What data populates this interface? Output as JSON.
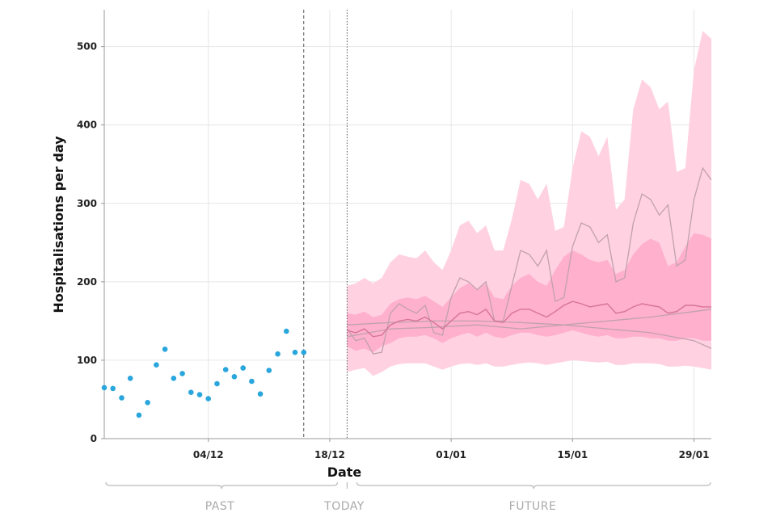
{
  "chart_data": {
    "type": "scatter",
    "xlabel": "Date",
    "ylabel": "Hospitalisations per day",
    "ylim": [
      0,
      520
    ],
    "yticks": [
      0,
      100,
      200,
      300,
      400,
      500
    ],
    "xticks": [
      {
        "date": "2020-12-04",
        "label": "04/12"
      },
      {
        "date": "2020-12-18",
        "label": "18/12"
      },
      {
        "date": "2021-01-01",
        "label": "01/01"
      },
      {
        "date": "2021-01-15",
        "label": "15/01"
      },
      {
        "date": "2021-01-29",
        "label": "29/01"
      }
    ],
    "xlim": [
      "2020-11-22",
      "2021-01-31"
    ],
    "grid": true,
    "colors": {
      "observed": "#29a6dc",
      "band_outer": "#ffd1e1",
      "band_inner": "#ffb0cc",
      "projection_line": "#d57595",
      "trajectory": "#c1a1ad",
      "reference_line": "#555555"
    },
    "markers": [
      {
        "date": "2020-12-15",
        "style": "dashed"
      },
      {
        "date": "2020-12-20",
        "style": "dotted"
      }
    ],
    "periods": {
      "past": "PAST",
      "today": "TODAY",
      "future": "FUTURE"
    },
    "observed": {
      "dates": [
        "2020-11-22",
        "2020-11-23",
        "2020-11-24",
        "2020-11-25",
        "2020-11-26",
        "2020-11-27",
        "2020-11-28",
        "2020-11-29",
        "2020-11-30",
        "2020-12-01",
        "2020-12-02",
        "2020-12-03",
        "2020-12-04",
        "2020-12-05",
        "2020-12-06",
        "2020-12-07",
        "2020-12-08",
        "2020-12-09",
        "2020-12-10",
        "2020-12-11",
        "2020-12-12",
        "2020-12-13",
        "2020-12-14",
        "2020-12-15"
      ],
      "values": [
        65,
        64,
        52,
        77,
        30,
        46,
        94,
        114,
        77,
        83,
        59,
        56,
        51,
        70,
        88,
        79,
        90,
        73,
        57,
        87,
        108,
        137,
        110,
        110
      ]
    },
    "projection": {
      "dates": [
        "2020-12-20",
        "2020-12-21",
        "2020-12-22",
        "2020-12-23",
        "2020-12-24",
        "2020-12-25",
        "2020-12-26",
        "2020-12-27",
        "2020-12-28",
        "2020-12-29",
        "2020-12-30",
        "2020-12-31",
        "2021-01-01",
        "2021-01-02",
        "2021-01-03",
        "2021-01-04",
        "2021-01-05",
        "2021-01-06",
        "2021-01-07",
        "2021-01-08",
        "2021-01-09",
        "2021-01-10",
        "2021-01-11",
        "2021-01-12",
        "2021-01-13",
        "2021-01-14",
        "2021-01-15",
        "2021-01-16",
        "2021-01-17",
        "2021-01-18",
        "2021-01-19",
        "2021-01-20",
        "2021-01-21",
        "2021-01-22",
        "2021-01-23",
        "2021-01-24",
        "2021-01-25",
        "2021-01-26",
        "2021-01-27",
        "2021-01-28",
        "2021-01-29",
        "2021-01-30",
        "2021-01-31"
      ],
      "median": [
        138,
        135,
        140,
        130,
        132,
        145,
        150,
        152,
        150,
        155,
        148,
        140,
        150,
        160,
        162,
        158,
        165,
        150,
        148,
        160,
        165,
        165,
        160,
        155,
        162,
        170,
        175,
        172,
        168,
        170,
        172,
        160,
        162,
        168,
        172,
        170,
        168,
        160,
        162,
        170,
        170,
        168,
        168
      ],
      "inner_lower": [
        118,
        112,
        115,
        110,
        118,
        122,
        128,
        130,
        130,
        132,
        128,
        122,
        128,
        132,
        135,
        130,
        135,
        130,
        128,
        132,
        135,
        135,
        132,
        130,
        132,
        135,
        138,
        135,
        132,
        130,
        132,
        128,
        128,
        130,
        130,
        128,
        128,
        125,
        125,
        128,
        128,
        125,
        125
      ],
      "inner_upper": [
        160,
        158,
        162,
        155,
        158,
        172,
        178,
        180,
        178,
        182,
        175,
        168,
        180,
        192,
        198,
        190,
        198,
        180,
        178,
        195,
        205,
        210,
        200,
        195,
        215,
        232,
        240,
        235,
        228,
        225,
        228,
        210,
        215,
        235,
        248,
        255,
        250,
        220,
        225,
        245,
        262,
        260,
        255
      ],
      "outer_lower": [
        85,
        88,
        90,
        80,
        85,
        92,
        95,
        96,
        96,
        96,
        92,
        88,
        92,
        95,
        96,
        94,
        96,
        92,
        92,
        94,
        96,
        97,
        96,
        94,
        96,
        98,
        100,
        99,
        98,
        97,
        98,
        94,
        94,
        96,
        96,
        96,
        95,
        92,
        92,
        93,
        92,
        90,
        88
      ],
      "outer_upper": [
        195,
        198,
        205,
        198,
        205,
        225,
        235,
        232,
        230,
        240,
        225,
        215,
        240,
        272,
        278,
        262,
        272,
        240,
        240,
        280,
        330,
        325,
        305,
        325,
        265,
        270,
        345,
        392,
        385,
        360,
        385,
        292,
        305,
        420,
        458,
        448,
        420,
        430,
        340,
        345,
        470,
        520,
        510
      ]
    },
    "trajectories": [
      {
        "dates": [
          "2020-12-20",
          "2020-12-21",
          "2020-12-22",
          "2020-12-23",
          "2020-12-24",
          "2020-12-25",
          "2020-12-26",
          "2020-12-27",
          "2020-12-28",
          "2020-12-29",
          "2020-12-30",
          "2020-12-31",
          "2021-01-01",
          "2021-01-02",
          "2021-01-03",
          "2021-01-04",
          "2021-01-05",
          "2021-01-06",
          "2021-01-07",
          "2021-01-08",
          "2021-01-09",
          "2021-01-10",
          "2021-01-11",
          "2021-01-12",
          "2021-01-13",
          "2021-01-14",
          "2021-01-15",
          "2021-01-16",
          "2021-01-17",
          "2021-01-18",
          "2021-01-19",
          "2021-01-20",
          "2021-01-21",
          "2021-01-22",
          "2021-01-23",
          "2021-01-24",
          "2021-01-25",
          "2021-01-26",
          "2021-01-27",
          "2021-01-28",
          "2021-01-29",
          "2021-01-30",
          "2021-01-31"
        ],
        "values": [
          140,
          125,
          128,
          108,
          110,
          160,
          172,
          165,
          160,
          170,
          135,
          132,
          180,
          205,
          200,
          190,
          200,
          150,
          150,
          195,
          240,
          235,
          220,
          240,
          175,
          180,
          245,
          275,
          270,
          250,
          260,
          200,
          205,
          275,
          312,
          305,
          285,
          298,
          220,
          228,
          305,
          345,
          330
        ]
      },
      {
        "dates": [
          "2020-12-20",
          "2020-12-25",
          "2020-12-30",
          "2021-01-04",
          "2021-01-09",
          "2021-01-14",
          "2021-01-19",
          "2021-01-24",
          "2021-01-29",
          "2021-01-31"
        ],
        "values": [
          130,
          140,
          142,
          145,
          140,
          145,
          150,
          155,
          162,
          165
        ]
      },
      {
        "dates": [
          "2020-12-20",
          "2020-12-25",
          "2020-12-30",
          "2021-01-04",
          "2021-01-09",
          "2021-01-14",
          "2021-01-19",
          "2021-01-24",
          "2021-01-29",
          "2021-01-31"
        ],
        "values": [
          145,
          148,
          150,
          150,
          148,
          145,
          140,
          135,
          125,
          115
        ]
      }
    ]
  }
}
